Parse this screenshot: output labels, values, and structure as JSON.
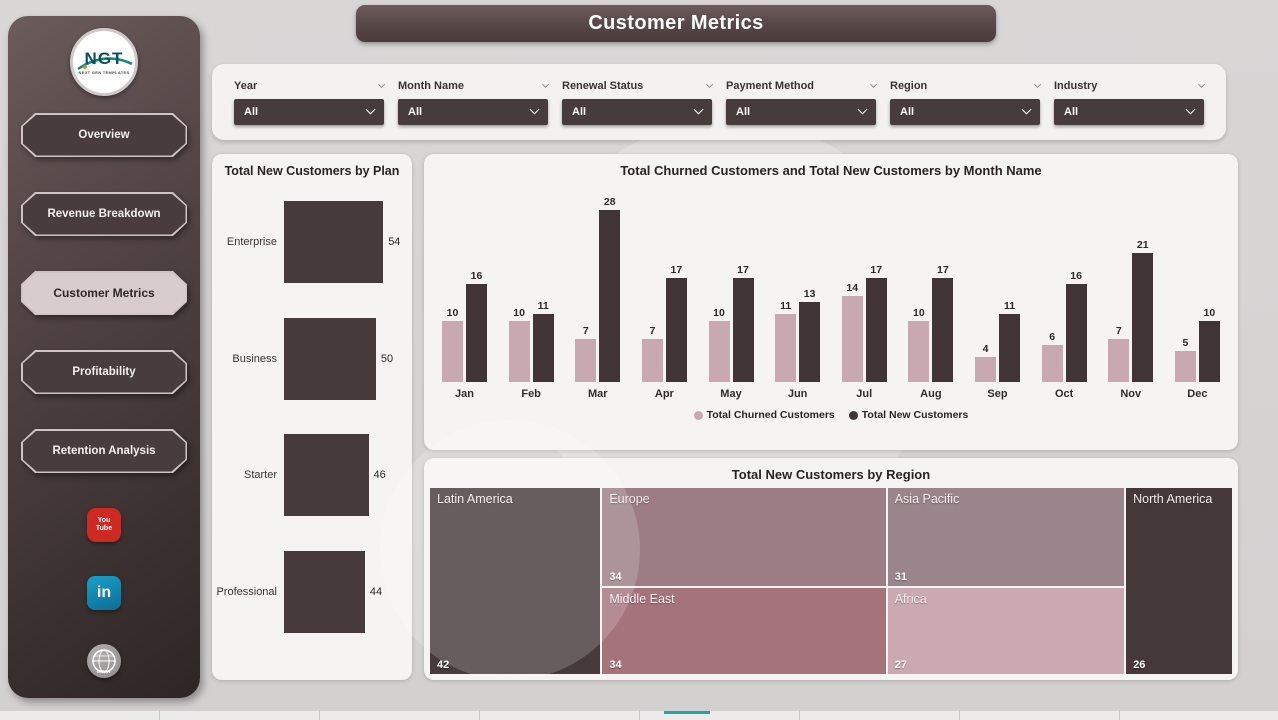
{
  "title": "Customer Metrics",
  "sidebar": {
    "logo": {
      "text": "NGT",
      "subtext": "NEXT GEN TEMPLATES"
    },
    "items": [
      {
        "label": "Overview",
        "active": false
      },
      {
        "label": "Revenue Breakdown",
        "active": false
      },
      {
        "label": "Customer Metrics",
        "active": true
      },
      {
        "label": "Profitability",
        "active": false
      },
      {
        "label": "Retention Analysis",
        "active": false
      }
    ],
    "social": [
      {
        "name": "youtube",
        "text": "You Tube",
        "color": "#ce2a23"
      },
      {
        "name": "linkedin",
        "text": "in",
        "color": "#0f7fa8"
      },
      {
        "name": "website",
        "text": "www",
        "color": "#8f8b8b"
      }
    ]
  },
  "filters": [
    {
      "label": "Year",
      "value": "All"
    },
    {
      "label": "Month Name",
      "value": "All"
    },
    {
      "label": "Renewal Status",
      "value": "All"
    },
    {
      "label": "Payment Method",
      "value": "All"
    },
    {
      "label": "Region",
      "value": "All"
    },
    {
      "label": "Industry",
      "value": "All"
    }
  ],
  "chart_data": [
    {
      "type": "bar",
      "orientation": "horizontal",
      "title": "Total New Customers by Plan",
      "categories": [
        "Enterprise",
        "Business",
        "Starter",
        "Professional"
      ],
      "values": [
        54,
        50,
        46,
        44
      ],
      "bar_color": "#473a3a",
      "xlabel": "",
      "ylabel": "",
      "grid": false
    },
    {
      "type": "bar",
      "title": "Total Churned Customers and Total New Customers by Month Name",
      "categories": [
        "Jan",
        "Feb",
        "Mar",
        "Apr",
        "May",
        "Jun",
        "Jul",
        "Aug",
        "Sep",
        "Oct",
        "Nov",
        "Dec"
      ],
      "series": [
        {
          "name": "Total Churned Customers",
          "color": "#c8a8b1",
          "values": [
            10,
            10,
            7,
            7,
            10,
            11,
            14,
            10,
            4,
            6,
            7,
            5
          ]
        },
        {
          "name": "Total New Customers",
          "color": "#413436",
          "values": [
            16,
            11,
            28,
            17,
            17,
            13,
            17,
            17,
            11,
            16,
            21,
            10
          ]
        }
      ],
      "ylim": [
        0,
        28
      ],
      "grid": false,
      "legend_position": "bottom",
      "data_labels": true
    },
    {
      "type": "treemap",
      "title": "Total New Customers by Region",
      "items": [
        {
          "label": "Latin America",
          "value": 42,
          "color": "#463a3a"
        },
        {
          "label": "Europe",
          "value": 34,
          "color": "#9c7d83"
        },
        {
          "label": "Middle East",
          "value": 34,
          "color": "#a5737c"
        },
        {
          "label": "Asia Pacific",
          "value": 31,
          "color": "#99858b"
        },
        {
          "label": "Africa",
          "value": 27,
          "color": "#cba9b1"
        },
        {
          "label": "North America",
          "value": 26,
          "color": "#443839"
        }
      ]
    }
  ],
  "bottom_strip": {
    "accent_color": "#1fa79b"
  },
  "colors": {
    "sidebar": "#3f3434",
    "banner": "#5a4848",
    "panel_bg": "#f6f4f3",
    "bar_dark": "#453a3a",
    "churned": "#c8a8b1",
    "new_customers": "#413436"
  }
}
